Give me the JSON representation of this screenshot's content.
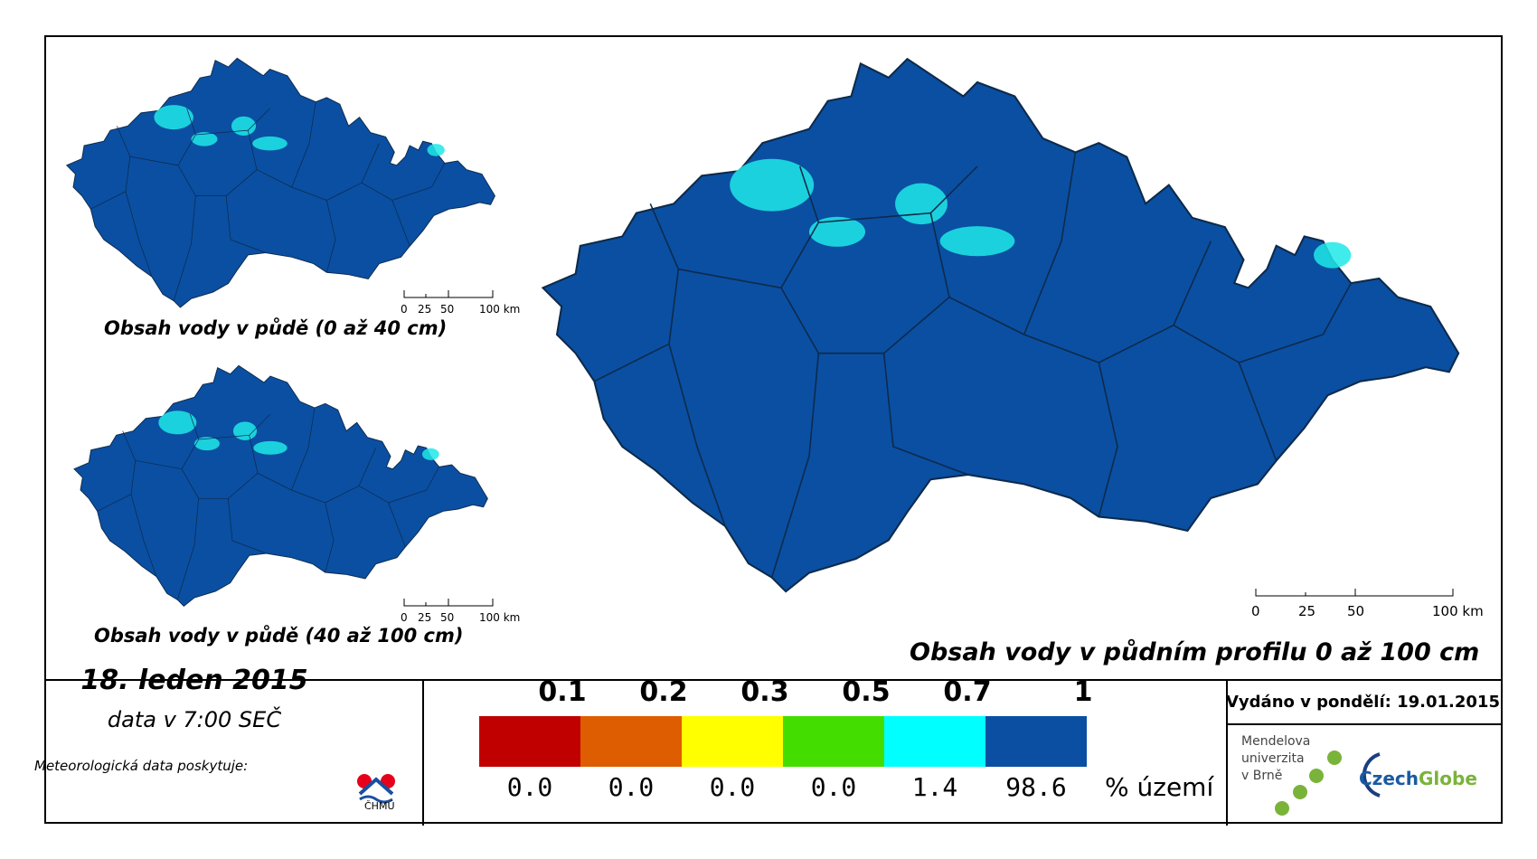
{
  "maps": {
    "topsoil": {
      "caption": "Obsah vody v půdě (0 až 40 cm)"
    },
    "subsoil": {
      "caption": "Obsah vody v půdě (40 až 100 cm)"
    },
    "profile": {
      "caption": "Obsah vody v půdním profilu 0 až 100 cm"
    }
  },
  "scale": {
    "ticks": [
      "0",
      "25",
      "50",
      "100 km"
    ]
  },
  "footer": {
    "date": "18. leden 2015",
    "time": "data v 7:00 SEČ",
    "provider": "Meteorologická data poskytuje:",
    "chmu": "ČHMÚ",
    "issued": "Vydáno v pondělí: 19.01.2015",
    "mendel": [
      "Mendelova",
      "univerzita",
      "v Brně"
    ],
    "czechglobe_a": "Czech",
    "czechglobe_b": "Globe"
  },
  "legend": {
    "thresholds": [
      "0.1",
      "0.2",
      "0.3",
      "0.5",
      "0.7",
      "1"
    ],
    "classes": [
      {
        "color": "#c00000",
        "pct": "0.0"
      },
      {
        "color": "#dd5d00",
        "pct": "0.0"
      },
      {
        "color": "#ffff00",
        "pct": "0.0"
      },
      {
        "color": "#44dd00",
        "pct": "0.0"
      },
      {
        "color": "#00ffff",
        "pct": "1.4"
      },
      {
        "color": "#0a4fa2",
        "pct": "98.6"
      }
    ],
    "unit": "% území"
  },
  "colors": {
    "land": "#0a4fa2",
    "wet_patch": "#1ee7e7",
    "border": "#0d2a4a"
  }
}
